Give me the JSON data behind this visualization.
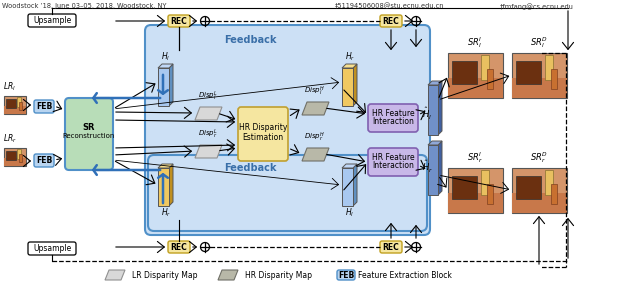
{
  "bg_color": "#ffffff",
  "feedback_box_color": "#cce0f5",
  "feedback_text_color": "#3a6fa8",
  "feb_color": "#b8d4f0",
  "sr_color": "#b8ddb8",
  "rec_color": "#f5e6a0",
  "hr_disp_color": "#f5e6a0",
  "hr_feat_color": "#c8b8e8",
  "upsample_color": "#ffffff",
  "conference_text": "Woodstock ’18, June 03–05, 2018, Woodstock, NY",
  "email1": "‡51194506008@stu.ecnu.edu.cn",
  "email2": "†fmfang@cs.ecnu.edu"
}
